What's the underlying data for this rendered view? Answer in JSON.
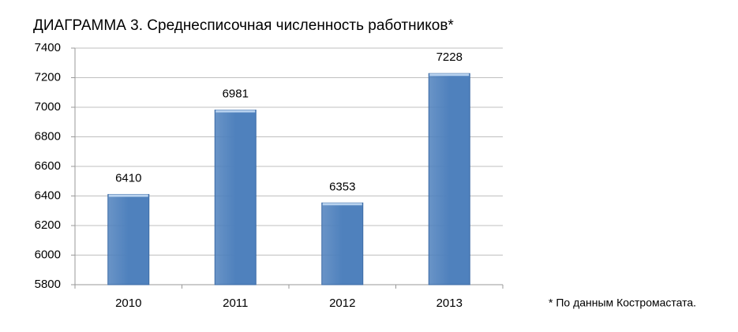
{
  "chart_data": {
    "type": "bar",
    "title": "ДИАГРАММА 3. Среднесписочная численность работников*",
    "note": "* По данным Костромастата.",
    "categories": [
      "2010",
      "2011",
      "2012",
      "2013"
    ],
    "values": [
      6410,
      6981,
      6353,
      7228
    ],
    "color": "#4f81bd",
    "ylim": [
      5800,
      7400
    ],
    "yticks": [
      5800,
      6000,
      6200,
      6400,
      6600,
      6800,
      7000,
      7200,
      7400
    ],
    "grid": true
  }
}
